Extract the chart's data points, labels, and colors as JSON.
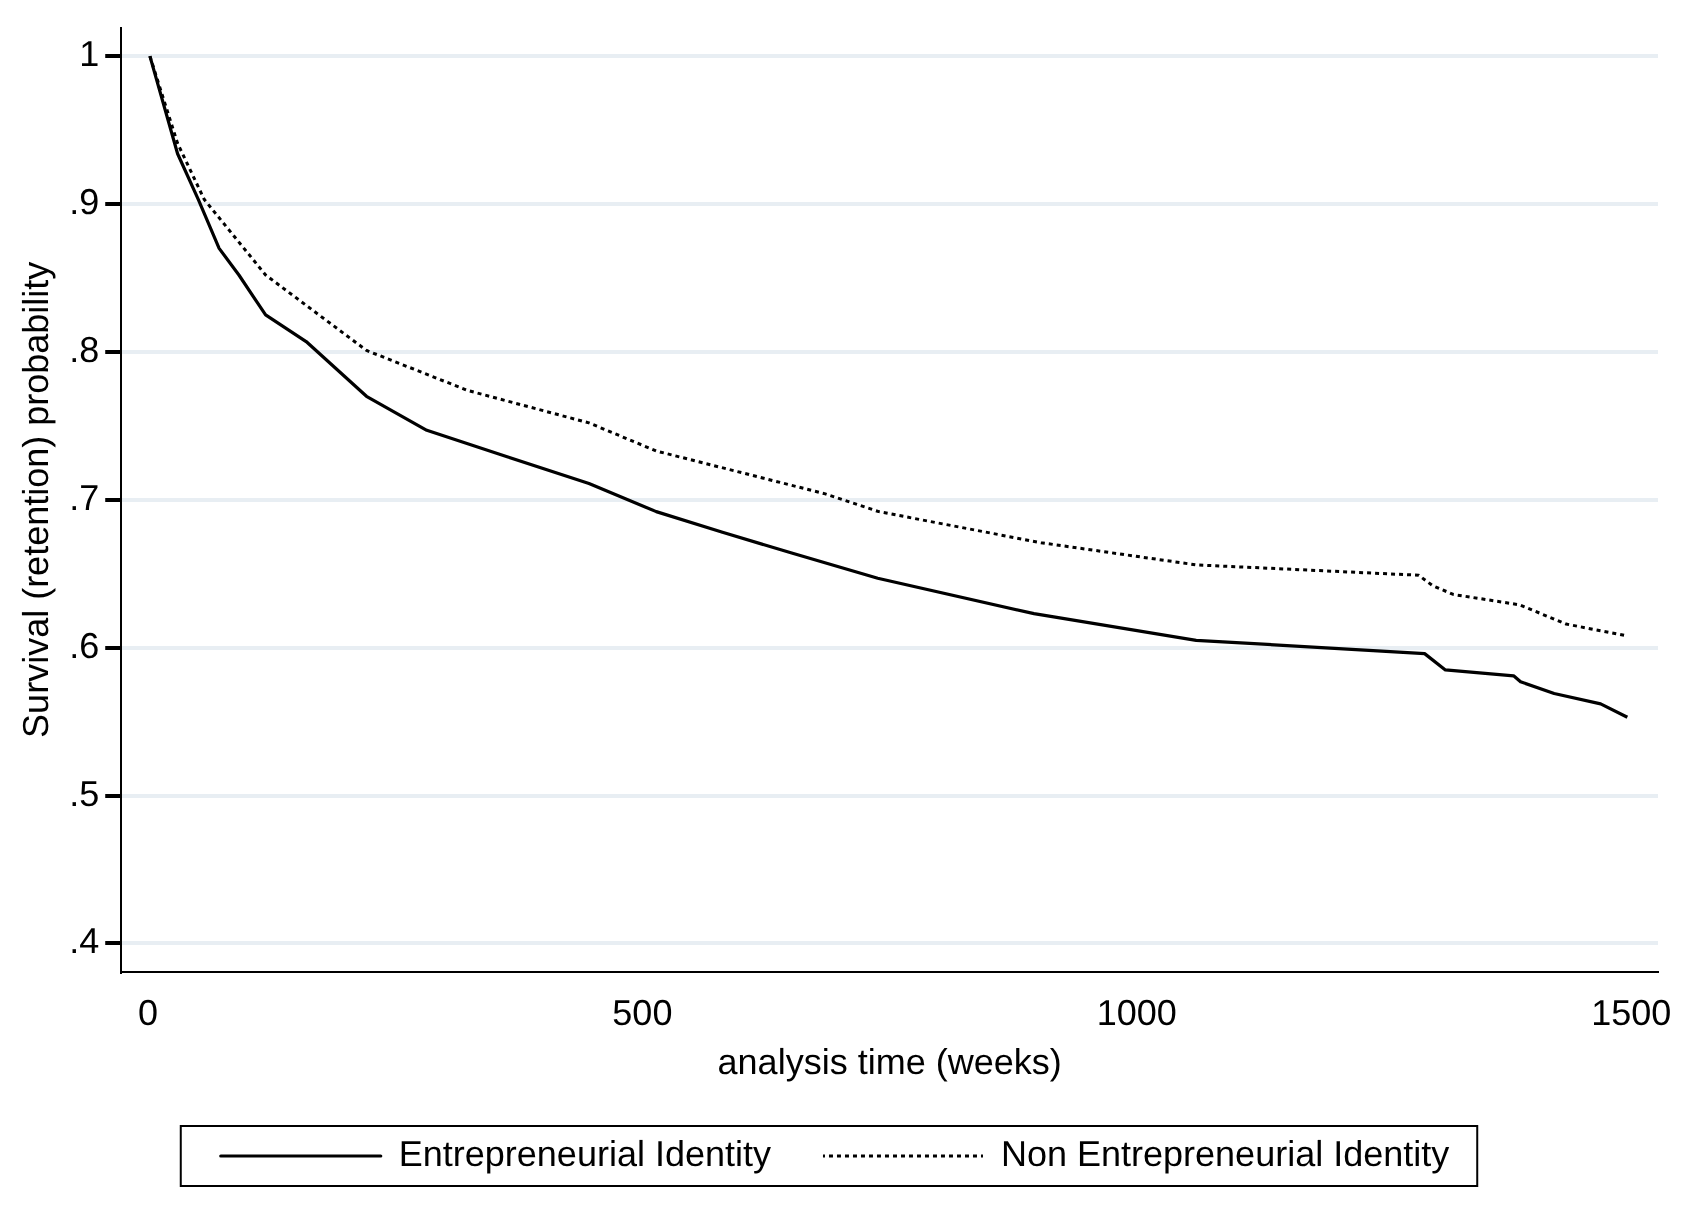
{
  "chart_data": {
    "type": "line",
    "xlabel": "analysis time (weeks)",
    "ylabel": "Survival (retention) probability",
    "xlim": [
      -27,
      1527
    ],
    "xticks": [
      0,
      500,
      1000,
      1500
    ],
    "ylim": [
      0.381,
      1.019
    ],
    "yticks": [
      {
        "value": 0.4,
        "label": ".4"
      },
      {
        "value": 0.5,
        "label": ".5"
      },
      {
        "value": 0.6,
        "label": ".6"
      },
      {
        "value": 0.7,
        "label": ".7"
      },
      {
        "value": 0.8,
        "label": ".8"
      },
      {
        "value": 0.9,
        "label": ".9"
      },
      1
    ],
    "grid": "y",
    "legend": "bottom",
    "marker": "none",
    "series": [
      {
        "name": "Entrepreneurial Identity",
        "color": "#000000",
        "line_style": "solid",
        "x": [
          2,
          30,
          51,
          72,
          92,
          119,
          160,
          221,
          282,
          364,
          446,
          514,
          581,
          651,
          738,
          896,
          1060,
          1291,
          1312,
          1381,
          1388,
          1422,
          1469,
          1496
        ],
        "values": [
          1,
          0.934,
          0.903,
          0.87,
          0.852,
          0.825,
          0.807,
          0.77,
          0.747,
          0.729,
          0.711,
          0.692,
          0.678,
          0.664,
          0.647,
          0.623,
          0.605,
          0.596,
          0.585,
          0.581,
          0.577,
          0.569,
          0.562,
          0.553
        ]
      },
      {
        "name": "Non Entrepreneurial Identity",
        "color": "#000000",
        "line_style": "dotted",
        "x": [
          2,
          30,
          57,
          119,
          221,
          323,
          446,
          514,
          685,
          739,
          903,
          1060,
          1285,
          1299,
          1320,
          1387,
          1434,
          1496
        ],
        "values": [
          1,
          0.941,
          0.903,
          0.852,
          0.801,
          0.774,
          0.752,
          0.733,
          0.704,
          0.692,
          0.671,
          0.656,
          0.649,
          0.642,
          0.636,
          0.629,
          0.616,
          0.608
        ]
      }
    ]
  }
}
